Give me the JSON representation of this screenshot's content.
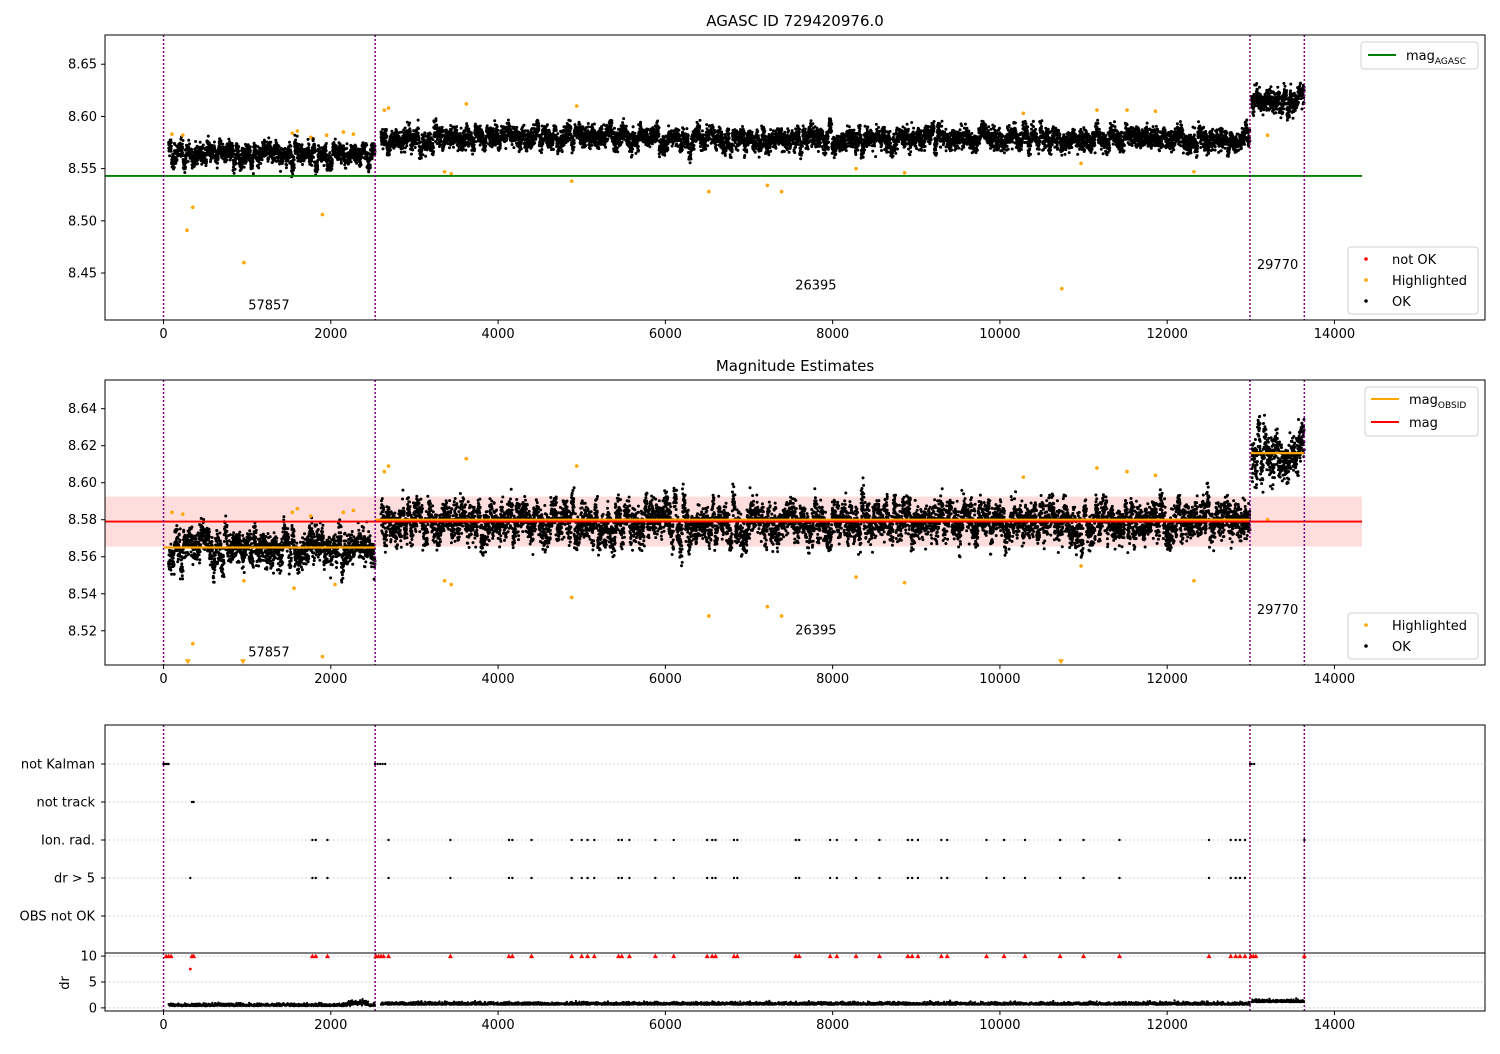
{
  "chart_data": [
    {
      "type": "scatter",
      "title": "AGASC ID 729420976.0",
      "xlim": [
        -700,
        15800
      ],
      "ylim": [
        8.405,
        8.678
      ],
      "x_ticks": [
        0,
        2000,
        4000,
        6000,
        8000,
        10000,
        12000,
        14000
      ],
      "y_ticks": [
        8.45,
        8.5,
        8.55,
        8.6,
        8.65
      ],
      "obsid_boundaries": [
        0,
        2530,
        12990,
        13640
      ],
      "obsid_labels": [
        {
          "text": "57857",
          "x": 1260,
          "y": 8.415
        },
        {
          "text": "26395",
          "x": 7800,
          "y": 8.434
        },
        {
          "text": "29770",
          "x": 13320,
          "y": 8.454
        }
      ],
      "lines": [
        {
          "name": "mag_AGASC",
          "label_main": "mag",
          "label_sub": "AGASC",
          "color": "#008000",
          "y": 8.543,
          "x_range": [
            -700,
            14330
          ]
        }
      ],
      "segments": [
        {
          "x0": 60,
          "x1": 2530,
          "mean": 8.565,
          "spread": 0.008
        },
        {
          "x0": 2600,
          "x1": 12990,
          "mean": 8.579,
          "spread": 0.0085
        },
        {
          "x0": 13010,
          "x1": 13640,
          "mean": 8.617,
          "spread": 0.01
        }
      ],
      "highlighted_points": [
        [
          100,
          8.583
        ],
        [
          230,
          8.582
        ],
        [
          280,
          8.491
        ],
        [
          350,
          8.513
        ],
        [
          960,
          8.46
        ],
        [
          1540,
          8.584
        ],
        [
          1600,
          8.586
        ],
        [
          1760,
          8.58
        ],
        [
          1900,
          8.506
        ],
        [
          1950,
          8.582
        ],
        [
          2150,
          8.585
        ],
        [
          2270,
          8.583
        ],
        [
          2640,
          8.606
        ],
        [
          2690,
          8.608
        ],
        [
          3360,
          8.547
        ],
        [
          3440,
          8.545
        ],
        [
          3620,
          8.612
        ],
        [
          4880,
          8.538
        ],
        [
          4940,
          8.61
        ],
        [
          6520,
          8.528
        ],
        [
          7220,
          8.534
        ],
        [
          7390,
          8.528
        ],
        [
          8280,
          8.55
        ],
        [
          8860,
          8.546
        ],
        [
          10280,
          8.603
        ],
        [
          10740,
          8.435
        ],
        [
          10970,
          8.555
        ],
        [
          11160,
          8.606
        ],
        [
          11520,
          8.606
        ],
        [
          11860,
          8.605
        ],
        [
          12320,
          8.547
        ],
        [
          13200,
          8.582
        ]
      ],
      "legend": {
        "upper": [
          {
            "label": "mag_AGASC",
            "color": "#008000",
            "kind": "line"
          }
        ],
        "lower": [
          {
            "label": "not OK",
            "color": "#ff0000",
            "kind": "dot"
          },
          {
            "label": "Highlighted",
            "color": "#ffa500",
            "kind": "dot"
          },
          {
            "label": "OK",
            "color": "#000000",
            "kind": "dot"
          }
        ]
      }
    },
    {
      "type": "scatter",
      "title": "Magnitude Estimates",
      "xlim": [
        -700,
        15800
      ],
      "ylim": [
        8.5015,
        8.6555
      ],
      "x_ticks": [
        0,
        2000,
        4000,
        6000,
        8000,
        10000,
        12000,
        14000
      ],
      "y_ticks": [
        8.52,
        8.54,
        8.56,
        8.58,
        8.6,
        8.62,
        8.64
      ],
      "obsid_boundaries": [
        0,
        2530,
        12990,
        13640
      ],
      "obsid_labels": [
        {
          "text": "57857",
          "x": 1260,
          "y": 8.506
        },
        {
          "text": "26395",
          "x": 7800,
          "y": 8.518
        },
        {
          "text": "29770",
          "x": 13320,
          "y": 8.529
        }
      ],
      "lines": [
        {
          "name": "mag",
          "label_main": "mag",
          "label_sub": "",
          "color": "#ff0000",
          "y": 8.579,
          "x_range": [
            -700,
            14330
          ]
        }
      ],
      "obsid_mags": [
        {
          "x0": 0,
          "x1": 2530,
          "y": 8.565
        },
        {
          "x0": 2530,
          "x1": 12990,
          "y": 8.58
        },
        {
          "x0": 12990,
          "x1": 13640,
          "y": 8.616
        }
      ],
      "mag_band": {
        "y0": 8.5655,
        "y1": 8.5925,
        "x_range": [
          -700,
          14330
        ],
        "color": "#ffdddd"
      },
      "segments": [
        {
          "x0": 60,
          "x1": 2530,
          "mean": 8.565,
          "spread": 0.0075
        },
        {
          "x0": 2600,
          "x1": 12990,
          "mean": 8.579,
          "spread": 0.0085
        },
        {
          "x0": 13010,
          "x1": 13640,
          "mean": 8.617,
          "spread": 0.01
        }
      ],
      "highlighted_points": [
        [
          100,
          8.584
        ],
        [
          230,
          8.583
        ],
        [
          350,
          8.513
        ],
        [
          960,
          8.547
        ],
        [
          1540,
          8.584
        ],
        [
          1600,
          8.586
        ],
        [
          1560,
          8.543
        ],
        [
          1760,
          8.582
        ],
        [
          1900,
          8.506
        ],
        [
          2050,
          8.545
        ],
        [
          2150,
          8.584
        ],
        [
          2270,
          8.585
        ],
        [
          2640,
          8.606
        ],
        [
          2690,
          8.609
        ],
        [
          3360,
          8.547
        ],
        [
          3440,
          8.545
        ],
        [
          3620,
          8.613
        ],
        [
          4880,
          8.538
        ],
        [
          4940,
          8.609
        ],
        [
          6520,
          8.528
        ],
        [
          7220,
          8.533
        ],
        [
          7390,
          8.528
        ],
        [
          8280,
          8.549
        ],
        [
          8860,
          8.546
        ],
        [
          10280,
          8.603
        ],
        [
          10970,
          8.555
        ],
        [
          11160,
          8.608
        ],
        [
          11520,
          8.606
        ],
        [
          11860,
          8.604
        ],
        [
          12320,
          8.547
        ],
        [
          13200,
          8.58
        ]
      ],
      "clipped_markers": [
        [
          290,
          8.503
        ],
        [
          950,
          8.503
        ],
        [
          10730,
          8.503
        ]
      ],
      "legend": {
        "upper": [
          {
            "label": "mag_OBSID",
            "color": "#ffa500",
            "kind": "line"
          },
          {
            "label": "mag",
            "color": "#ff0000",
            "kind": "line"
          }
        ],
        "lower": [
          {
            "label": "Highlighted",
            "color": "#ffa500",
            "kind": "dot"
          },
          {
            "label": "OK",
            "color": "#000000",
            "kind": "dot"
          }
        ]
      }
    },
    {
      "type": "scatter",
      "title": "",
      "xlim": [
        -700,
        15800
      ],
      "x_ticks": [
        0,
        2000,
        4000,
        6000,
        8000,
        10000,
        12000,
        14000
      ],
      "obsid_boundaries": [
        0,
        2530,
        12990,
        13640
      ],
      "flag_rows": [
        "not Kalman",
        "not track",
        "Ion. rad.",
        "dr > 5",
        "OBS not OK"
      ],
      "flag_points": {
        "not Kalman": [
          0,
          20,
          40,
          60,
          2530,
          2560,
          2590,
          2620,
          2650,
          12990,
          13010,
          13040
        ],
        "not track": [
          340,
          360
        ],
        "Ion. rad.": [
          1780,
          1820,
          1960,
          2690,
          3430,
          4130,
          4170,
          4400,
          4880,
          5000,
          5070,
          5150,
          5440,
          5480,
          5570,
          5880,
          6100,
          6500,
          6560,
          6600,
          6820,
          6860,
          7560,
          7600,
          7970,
          8050,
          8280,
          8560,
          8900,
          8950,
          9020,
          9300,
          9370,
          9840,
          10050,
          10300,
          10720,
          11000,
          11430,
          12500,
          12760,
          12820,
          12870,
          12930,
          13640
        ],
        "dr > 5": [
          320,
          1780,
          1820,
          1960,
          2690,
          3430,
          4130,
          4170,
          4400,
          4880,
          5000,
          5070,
          5150,
          5440,
          5480,
          5570,
          5880,
          6100,
          6500,
          6560,
          6600,
          6820,
          6860,
          7560,
          7600,
          7970,
          8050,
          8280,
          8560,
          8900,
          8950,
          9020,
          9300,
          9370,
          9840,
          10050,
          10300,
          10720,
          11000,
          11430,
          12500,
          12760,
          12820,
          12870,
          12930,
          13640
        ],
        "OBS not OK": []
      },
      "dr_panel": {
        "ylabel": "dr",
        "y_ticks": [
          0,
          5,
          10
        ],
        "ylim": [
          -0.6,
          10.6
        ],
        "clipped_value": 10,
        "clipped_x": [
          30,
          60,
          90,
          340,
          360,
          1780,
          1820,
          1960,
          2540,
          2570,
          2600,
          2630,
          2690,
          3430,
          4130,
          4170,
          4400,
          4880,
          5000,
          5070,
          5150,
          5440,
          5480,
          5570,
          5880,
          6100,
          6500,
          6560,
          6600,
          6820,
          6860,
          7560,
          7600,
          7970,
          8050,
          8280,
          8560,
          8900,
          8950,
          9020,
          9300,
          9370,
          9840,
          10050,
          10300,
          10720,
          11000,
          11430,
          12500,
          12760,
          12820,
          12870,
          12930,
          13000,
          13030,
          13060,
          13640
        ],
        "extra_red": [
          [
            320,
            7.5
          ]
        ],
        "segments": [
          {
            "x0": 60,
            "x1": 2530,
            "mean": 0.35
          },
          {
            "x0": 2600,
            "x1": 12990,
            "mean": 0.6
          },
          {
            "x0": 13010,
            "x1": 13640,
            "mean": 1.1
          }
        ]
      }
    }
  ]
}
